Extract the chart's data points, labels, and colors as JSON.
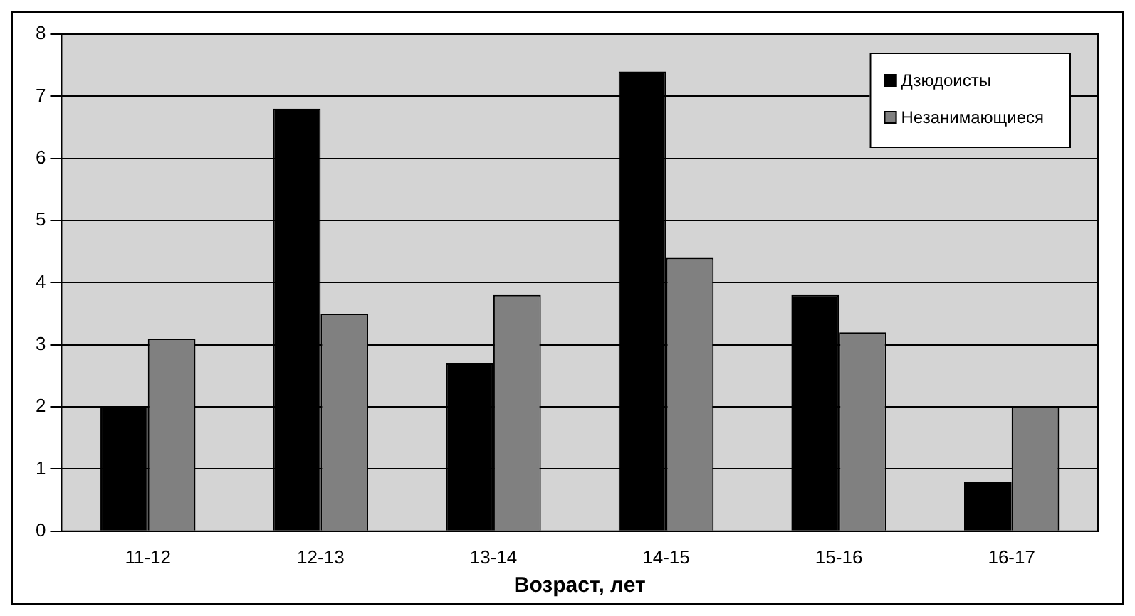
{
  "chart_data": {
    "type": "bar",
    "xlabel": "Возраст, лет",
    "categories": [
      "11-12",
      "12-13",
      "13-14",
      "14-15",
      "15-16",
      "16-17"
    ],
    "series": [
      {
        "name": "Дзюдоисты",
        "color": "#000000",
        "values": [
          2.0,
          6.8,
          2.7,
          7.4,
          3.8,
          0.8
        ]
      },
      {
        "name": "Незанимающиеся",
        "color": "#808080",
        "values": [
          3.1,
          3.5,
          3.8,
          4.4,
          3.2,
          2.0
        ]
      }
    ],
    "ylim": [
      0,
      8
    ],
    "yticks": [
      0,
      1,
      2,
      3,
      4,
      5,
      6,
      7,
      8
    ],
    "grid": "y",
    "legend": "top right"
  }
}
